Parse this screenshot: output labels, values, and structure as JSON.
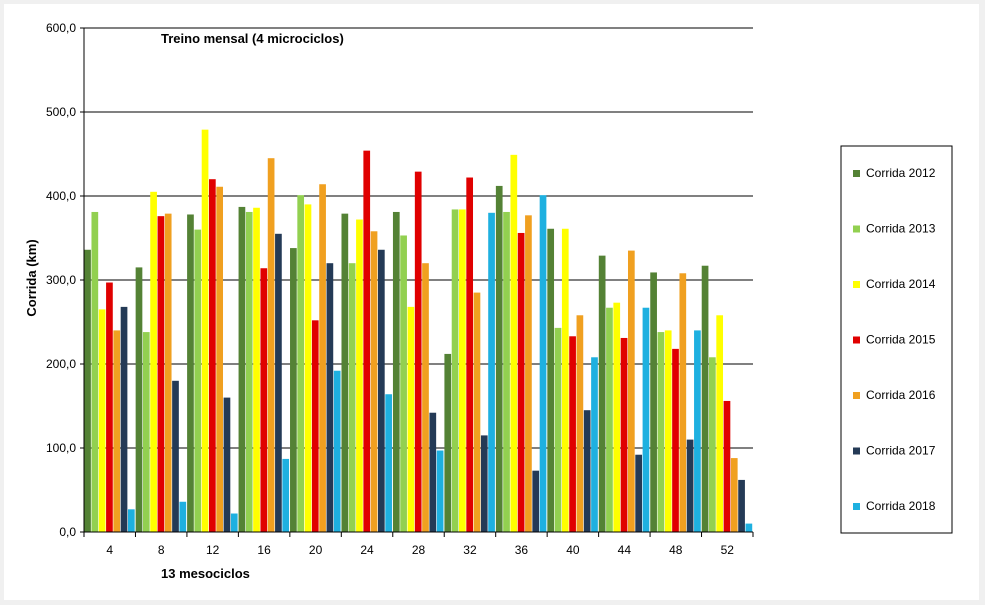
{
  "chart_data": {
    "type": "bar",
    "title": "Treino mensal (4 microciclos)",
    "xlabel": "13 mesociclos",
    "ylabel": "Corrida (km)",
    "ylim": [
      0,
      600
    ],
    "yticks": [
      "0,0",
      "100,0",
      "200,0",
      "300,0",
      "400,0",
      "500,0",
      "600,0"
    ],
    "grid": true,
    "legend_position": "right",
    "categories": [
      "4",
      "8",
      "12",
      "16",
      "20",
      "24",
      "28",
      "32",
      "36",
      "40",
      "44",
      "48",
      "52"
    ],
    "series": [
      {
        "name": "Corrida 2012",
        "color": "#548235",
        "values": [
          336,
          315,
          378,
          387,
          338,
          379,
          381,
          212,
          412,
          361,
          329,
          309,
          317
        ]
      },
      {
        "name": "Corrida 2013",
        "color": "#92d050",
        "values": [
          381,
          238,
          360,
          381,
          401,
          320,
          353,
          384,
          381,
          243,
          267,
          238,
          208
        ]
      },
      {
        "name": "Corrida 2014",
        "color": "#ffff00",
        "values": [
          265,
          405,
          479,
          386,
          390,
          372,
          268,
          384,
          449,
          361,
          273,
          240,
          258
        ]
      },
      {
        "name": "Corrida 2015",
        "color": "#e00000",
        "values": [
          297,
          376,
          420,
          314,
          252,
          454,
          429,
          422,
          356,
          233,
          231,
          218,
          156
        ]
      },
      {
        "name": "Corrida 2016",
        "color": "#f0a020",
        "values": [
          240,
          379,
          411,
          445,
          414,
          358,
          320,
          285,
          377,
          258,
          335,
          308,
          88
        ]
      },
      {
        "name": "Corrida 2017",
        "color": "#243a56",
        "values": [
          268,
          180,
          160,
          355,
          320,
          336,
          142,
          115,
          73,
          145,
          92,
          110,
          62
        ]
      },
      {
        "name": "Corrida 2018",
        "color": "#1eb0e0",
        "values": [
          27,
          36,
          22,
          87,
          192,
          164,
          97,
          380,
          401,
          208,
          267,
          240,
          10
        ]
      }
    ]
  }
}
